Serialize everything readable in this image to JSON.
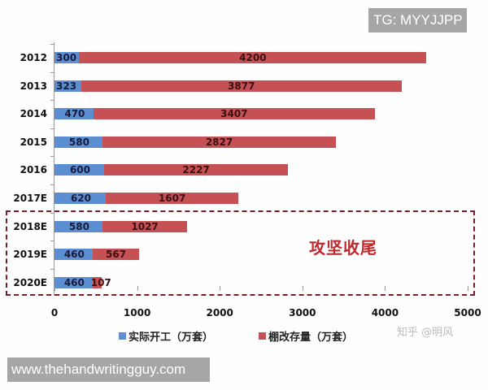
{
  "watermarks": {
    "top": "TG: MYYJJPP",
    "bottom": "www.thehandwritingguy.com",
    "source": "知乎 @明风"
  },
  "annotation": "攻坚收尾",
  "colors": {
    "blue": "#5b8fd1",
    "red": "#c55154",
    "dash": "#7a1f24",
    "annotation": "#c0282c"
  },
  "legend": [
    {
      "label": "实际开工（万套）",
      "color": "#5b8fd1"
    },
    {
      "label": "棚改存量（万套）",
      "color": "#c55154"
    }
  ],
  "x_ticks": [
    "0",
    "1000",
    "2000",
    "3000",
    "4000",
    "5000"
  ],
  "chart_data": {
    "type": "bar",
    "orientation": "horizontal",
    "stacked": true,
    "title": "",
    "xlabel": "",
    "ylabel": "",
    "xlim": [
      0,
      5000
    ],
    "categories": [
      "2012",
      "2013",
      "2014",
      "2015",
      "2016",
      "2017E",
      "2018E",
      "2019E",
      "2020E"
    ],
    "series": [
      {
        "name": "实际开工（万套）",
        "values": [
          300,
          323,
          470,
          580,
          600,
          620,
          580,
          460,
          460
        ]
      },
      {
        "name": "棚改存量（万套）",
        "values": [
          4200,
          3877,
          3407,
          2827,
          2227,
          1607,
          1027,
          567,
          107
        ]
      }
    ],
    "annotations": [
      {
        "text": "攻坚收尾",
        "region": [
          "2018E",
          "2020E"
        ],
        "style": "dashed box"
      }
    ],
    "legend_position": "bottom",
    "grid": false
  }
}
